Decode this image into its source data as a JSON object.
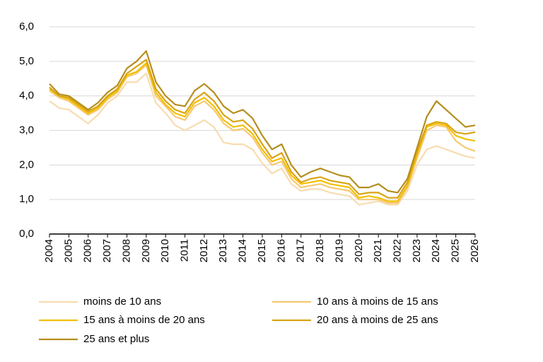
{
  "chart_data": {
    "type": "line",
    "x": [
      2004,
      2004.5,
      2005,
      2005.5,
      2006,
      2006.5,
      2007,
      2007.5,
      2008,
      2008.5,
      2009,
      2009.5,
      2010,
      2010.5,
      2011,
      2011.5,
      2012,
      2012.5,
      2013,
      2013.5,
      2014,
      2014.5,
      2015,
      2015.5,
      2016,
      2016.5,
      2017,
      2017.5,
      2018,
      2018.5,
      2019,
      2019.5,
      2020,
      2020.5,
      2021,
      2021.5,
      2022,
      2022.5,
      2023,
      2023.5,
      2024,
      2024.5,
      2025,
      2025.5,
      2026
    ],
    "series": [
      {
        "name": "moins de 10 ans",
        "color": "#f7dcb0",
        "values": [
          3.85,
          3.65,
          3.6,
          3.4,
          3.2,
          3.45,
          3.8,
          4.0,
          4.4,
          4.4,
          4.65,
          3.8,
          3.5,
          3.15,
          3.0,
          3.15,
          3.3,
          3.1,
          2.65,
          2.6,
          2.6,
          2.45,
          2.05,
          1.75,
          1.9,
          1.45,
          1.25,
          1.3,
          1.3,
          1.2,
          1.15,
          1.1,
          0.85,
          0.9,
          0.95,
          0.85,
          0.85,
          1.25,
          2.0,
          2.45,
          2.55,
          2.45,
          2.35,
          2.25,
          2.2
        ]
      },
      {
        "name": "10 ans à moins de 15 ans",
        "color": "#f5c972",
        "values": [
          4.15,
          3.95,
          3.85,
          3.65,
          3.45,
          3.6,
          3.9,
          4.1,
          4.55,
          4.65,
          4.9,
          4.0,
          3.7,
          3.4,
          3.3,
          3.7,
          3.85,
          3.6,
          3.2,
          3.0,
          3.05,
          2.8,
          2.35,
          2.0,
          2.1,
          1.6,
          1.35,
          1.4,
          1.45,
          1.35,
          1.3,
          1.25,
          1.0,
          1.0,
          1.0,
          0.9,
          0.9,
          1.35,
          2.2,
          3.0,
          3.15,
          3.1,
          2.7,
          2.5,
          2.4
        ]
      },
      {
        "name": "15 ans à moins de 20 ans",
        "color": "#f2bf00",
        "values": [
          4.2,
          4.0,
          3.9,
          3.7,
          3.5,
          3.65,
          3.95,
          4.15,
          4.6,
          4.7,
          4.95,
          4.1,
          3.75,
          3.5,
          3.4,
          3.8,
          3.95,
          3.7,
          3.3,
          3.1,
          3.15,
          2.9,
          2.45,
          2.1,
          2.2,
          1.7,
          1.45,
          1.5,
          1.55,
          1.45,
          1.4,
          1.35,
          1.05,
          1.1,
          1.05,
          0.95,
          0.95,
          1.4,
          2.3,
          3.1,
          3.2,
          3.15,
          2.85,
          2.75,
          2.7
        ]
      },
      {
        "name": "20 ans à moins de 25 ans",
        "color": "#d9a414",
        "values": [
          4.25,
          4.0,
          3.95,
          3.75,
          3.55,
          3.7,
          4.0,
          4.2,
          4.65,
          4.85,
          5.05,
          4.2,
          3.85,
          3.6,
          3.5,
          3.9,
          4.1,
          3.85,
          3.45,
          3.25,
          3.3,
          3.05,
          2.6,
          2.2,
          2.35,
          1.8,
          1.5,
          1.6,
          1.65,
          1.55,
          1.5,
          1.45,
          1.15,
          1.2,
          1.2,
          1.05,
          1.05,
          1.5,
          2.4,
          3.15,
          3.25,
          3.2,
          2.95,
          2.9,
          2.95
        ]
      },
      {
        "name": "25 ans et plus",
        "color": "#b68e1e",
        "values": [
          4.35,
          4.05,
          4.0,
          3.8,
          3.6,
          3.8,
          4.1,
          4.3,
          4.8,
          5.0,
          5.3,
          4.4,
          4.0,
          3.75,
          3.7,
          4.15,
          4.35,
          4.1,
          3.7,
          3.5,
          3.6,
          3.35,
          2.85,
          2.45,
          2.6,
          2.0,
          1.65,
          1.8,
          1.9,
          1.8,
          1.7,
          1.65,
          1.35,
          1.35,
          1.45,
          1.25,
          1.2,
          1.6,
          2.5,
          3.4,
          3.85,
          3.6,
          3.35,
          3.1,
          3.15
        ]
      }
    ],
    "xlim": [
      2004,
      2026
    ],
    "xticks": [
      2004,
      2005,
      2006,
      2007,
      2008,
      2009,
      2010,
      2011,
      2012,
      2013,
      2014,
      2015,
      2016,
      2017,
      2018,
      2019,
      2020,
      2021,
      2022,
      2023,
      2024,
      2025,
      2026
    ],
    "ylim": [
      0,
      6
    ],
    "yticks": [
      {
        "value": 0,
        "label": "0,0"
      },
      {
        "value": 1,
        "label": "1,0"
      },
      {
        "value": 2,
        "label": "2,0"
      },
      {
        "value": 3,
        "label": "3,0"
      },
      {
        "value": 4,
        "label": "4,0"
      },
      {
        "value": 5,
        "label": "5,0"
      },
      {
        "value": 6,
        "label": "6,0"
      }
    ],
    "grid": true
  }
}
